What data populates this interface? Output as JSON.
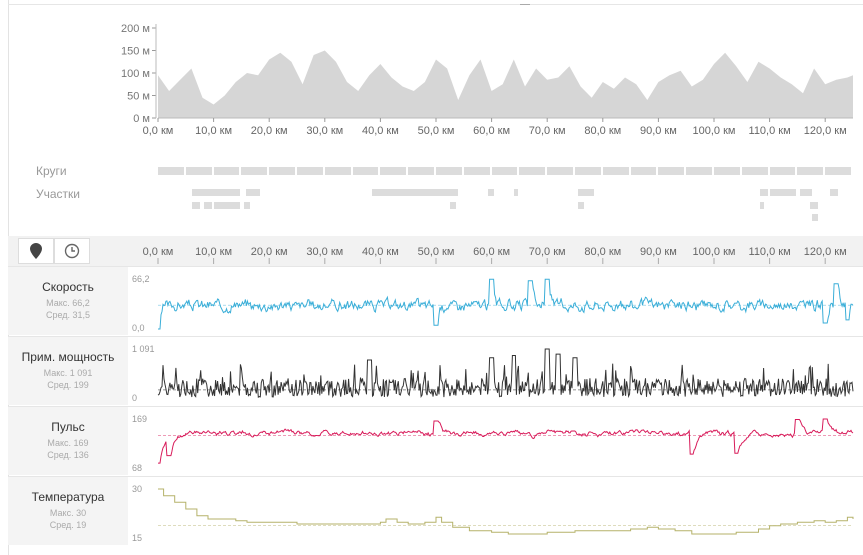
{
  "elevation": {
    "y_ticks": [
      "200 м",
      "150 м",
      "100 м",
      "50 м",
      "0 м"
    ],
    "x_ticks": [
      "0,0 км",
      "10,0 км",
      "20,0 км",
      "30,0 км",
      "40,0 км",
      "50,0 км",
      "60,0 км",
      "70,0 км",
      "80,0 км",
      "90,0 км",
      "100,0 км",
      "110,0 км",
      "120,0 км"
    ]
  },
  "laps_label": "Круги",
  "segments_label": "Участки",
  "toolbar": {
    "distance_icon": "map-pin-icon",
    "time_icon": "clock-icon",
    "x_ticks": [
      "0,0 км",
      "10,0 км",
      "20,0 км",
      "30,0 км",
      "40,0 км",
      "50,0 км",
      "60,0 км",
      "70,0 км",
      "80,0 км",
      "90,0 км",
      "100,0 км",
      "110,0 км",
      "120,0 км"
    ]
  },
  "panels": [
    {
      "key": "speed",
      "name": "Скорость",
      "max": "Макс. 66,2",
      "avg": "Сред. 31,5",
      "ytop": "66,2",
      "ybot": "0,0",
      "color": "#3aaed8"
    },
    {
      "key": "power",
      "name": "Прим. мощность",
      "max": "Макс. 1 091",
      "avg": "Сред. 199",
      "ytop": "1 091",
      "ybot": "0",
      "color": "#333333"
    },
    {
      "key": "hr",
      "name": "Пульс",
      "max": "Макс. 169",
      "avg": "Сред. 136",
      "ytop": "169",
      "ybot": "68",
      "color": "#d81b5a"
    },
    {
      "key": "temp",
      "name": "Температура",
      "max": "Макс. 30",
      "avg": "Сред. 19",
      "ytop": "30",
      "ybot": "15",
      "color": "#b5b26a"
    }
  ],
  "chart_data": [
    {
      "type": "area",
      "ylim": [
        0,
        200
      ],
      "xlim": [
        0,
        125
      ],
      "x": [
        0,
        2,
        4,
        6,
        8,
        10,
        12,
        14,
        16,
        18,
        20,
        22,
        24,
        26,
        28,
        30,
        32,
        34,
        36,
        38,
        40,
        42,
        44,
        46,
        48,
        50,
        52,
        54,
        56,
        58,
        60,
        62,
        64,
        66,
        68,
        70,
        72,
        74,
        76,
        78,
        80,
        82,
        84,
        86,
        88,
        90,
        92,
        94,
        96,
        98,
        100,
        102,
        104,
        106,
        108,
        110,
        112,
        114,
        116,
        118,
        120,
        122,
        124,
        125
      ],
      "values": [
        95,
        60,
        85,
        110,
        45,
        30,
        50,
        80,
        100,
        95,
        130,
        145,
        125,
        75,
        140,
        150,
        125,
        80,
        60,
        95,
        120,
        90,
        70,
        60,
        80,
        130,
        110,
        40,
        95,
        130,
        60,
        75,
        130,
        70,
        110,
        85,
        90,
        115,
        70,
        45,
        80,
        65,
        90,
        75,
        40,
        80,
        95,
        105,
        70,
        85,
        120,
        145,
        115,
        80,
        125,
        110,
        90,
        75,
        55,
        110,
        75,
        85,
        90,
        95
      ],
      "xlabel": "",
      "ylabel": ""
    },
    {
      "type": "line",
      "name": "Скорость",
      "ylim": [
        0,
        66.2
      ],
      "avg": 31.5,
      "xlim": [
        0,
        125
      ],
      "seed": 3,
      "base": 31.5,
      "amp": 12,
      "spikes": [
        [
          60,
          66
        ],
        [
          67,
          64
        ],
        [
          70,
          66
        ],
        [
          122,
          60
        ]
      ],
      "dips": [
        [
          0,
          0
        ],
        [
          50,
          5
        ],
        [
          120,
          8
        ],
        [
          124,
          12
        ]
      ]
    },
    {
      "type": "line",
      "name": "Прим. мощность",
      "ylim": [
        0,
        1091
      ],
      "avg": 199,
      "xlim": [
        0,
        125
      ],
      "seed": 7,
      "base": 199,
      "amp": 230,
      "spikes": [
        [
          38,
          850
        ],
        [
          60,
          900
        ],
        [
          64,
          950
        ],
        [
          70,
          1091
        ],
        [
          72,
          980
        ],
        [
          75,
          900
        ]
      ],
      "dips": []
    },
    {
      "type": "line",
      "name": "Пульс",
      "ylim": [
        68,
        169
      ],
      "avg": 136,
      "xlim": [
        0,
        125
      ],
      "seed": 11,
      "base": 140,
      "amp": 8,
      "spikes": [
        [
          50,
          165
        ],
        [
          115,
          168
        ],
        [
          120,
          169
        ]
      ],
      "dips": [
        [
          0,
          80
        ],
        [
          2,
          95
        ],
        [
          96,
          98
        ],
        [
          104,
          100
        ]
      ]
    },
    {
      "type": "line",
      "name": "Температура",
      "ylim": [
        15,
        30
      ],
      "avg": 19,
      "xlim": [
        0,
        125
      ],
      "x": [
        0,
        1,
        3,
        5,
        7,
        9,
        12,
        14,
        16,
        20,
        25,
        30,
        35,
        40,
        41,
        43,
        45,
        48,
        50,
        51,
        53,
        56,
        60,
        63,
        66,
        70,
        75,
        80,
        85,
        88,
        90,
        93,
        96,
        100,
        104,
        108,
        110,
        112,
        115,
        118,
        120,
        122,
        124,
        125
      ],
      "values": [
        30,
        28,
        26,
        24,
        22,
        21,
        21,
        20.5,
        20,
        20,
        19.5,
        19.5,
        19.5,
        20,
        21,
        20,
        19.5,
        20,
        21.5,
        20,
        18.5,
        17.5,
        17,
        16.5,
        16.5,
        17,
        17.5,
        17.5,
        18,
        18.5,
        18,
        17.5,
        16.5,
        16.5,
        17,
        18,
        19,
        19.5,
        20,
        20.5,
        20,
        20.5,
        21.5,
        21
      ]
    }
  ]
}
